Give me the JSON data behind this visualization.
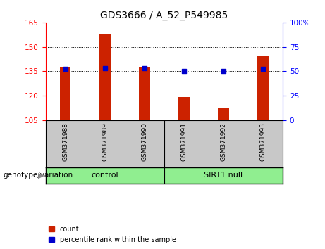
{
  "title": "GDS3666 / A_52_P549985",
  "samples": [
    "GSM371988",
    "GSM371989",
    "GSM371990",
    "GSM371991",
    "GSM371992",
    "GSM371993"
  ],
  "count_values": [
    137.5,
    158.0,
    137.5,
    119.0,
    112.5,
    144.0
  ],
  "percentile_values": [
    52,
    53,
    53,
    50,
    50,
    52
  ],
  "ylim_left": [
    105,
    165
  ],
  "ylim_right": [
    0,
    100
  ],
  "yticks_left": [
    105,
    120,
    135,
    150,
    165
  ],
  "yticks_right": [
    0,
    25,
    50,
    75,
    100
  ],
  "bar_color": "#CC2200",
  "dot_color": "#0000CC",
  "background_color": "#ffffff",
  "xlabel_area_color": "#C8C8C8",
  "group_row_color": "#90EE90",
  "legend_count_color": "#CC2200",
  "legend_pct_color": "#0000CC",
  "control_label": "control",
  "sirt1_label": "SIRT1 null",
  "genotype_label": "genotype/variation",
  "legend_count_text": "count",
  "legend_pct_text": "percentile rank within the sample"
}
